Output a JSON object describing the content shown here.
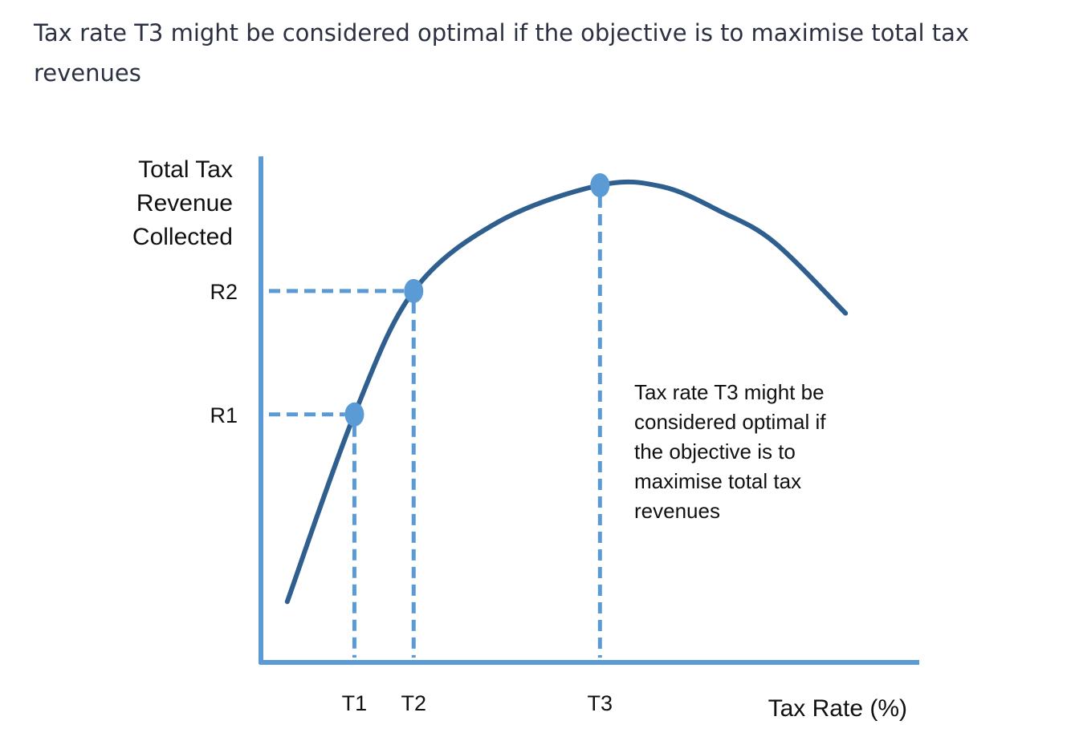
{
  "caption": "Tax rate T3 might be considered optimal if the objective is to maximise total tax revenues",
  "chart_data": {
    "type": "line",
    "title": "",
    "ylabel_lines": [
      "Total Tax",
      "Revenue",
      "Collected"
    ],
    "xlabel": "Tax Rate (%)",
    "x_ticks": [
      "T1",
      "T2",
      "T3"
    ],
    "y_ticks": [
      "R1",
      "R2"
    ],
    "xlim": [
      0,
      100
    ],
    "ylim": [
      0,
      100
    ],
    "grid": false,
    "series": [
      {
        "x": [
          4,
          14.2,
          23.2,
          36,
          51.5,
          61,
          70,
          78,
          88.8
        ],
        "y": [
          12,
          49,
          73.4,
          87,
          94.3,
          94,
          89,
          83,
          69
        ]
      }
    ],
    "points": [
      {
        "label": "T1",
        "x": 14.2,
        "y": 49,
        "ylabel": "R1"
      },
      {
        "label": "T2",
        "x": 23.2,
        "y": 73.4,
        "ylabel": "R2"
      },
      {
        "label": "T3",
        "x": 51.5,
        "y": 94.3,
        "ylabel": ""
      }
    ],
    "annotation_lines": [
      "Tax rate T3 might be",
      "considered optimal if",
      "the objective is to",
      "maximise total tax",
      "revenues"
    ],
    "colors": {
      "curve": "#2f5f8f",
      "axis": "#5b9bd5",
      "guide": "#5b9bd5",
      "marker": "#5b9bd5"
    }
  }
}
